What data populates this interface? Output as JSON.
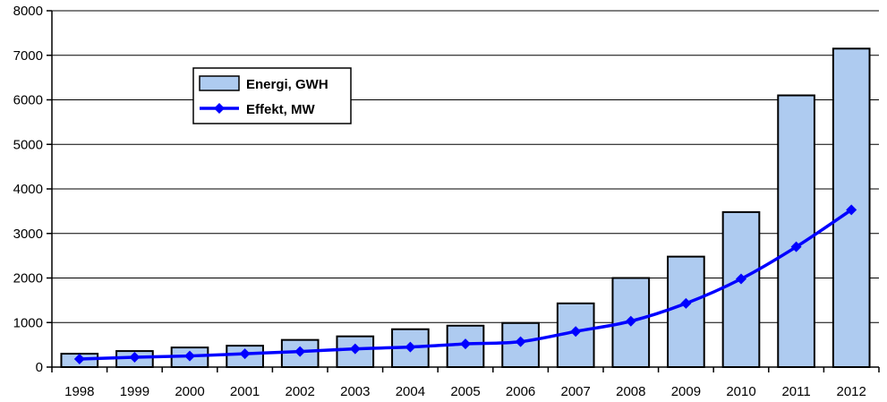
{
  "chart_data": {
    "type": "bar",
    "categories": [
      "1998",
      "1999",
      "2000",
      "2001",
      "2002",
      "2003",
      "2004",
      "2005",
      "2006",
      "2007",
      "2008",
      "2009",
      "2010",
      "2011",
      "2012"
    ],
    "series": [
      {
        "name": "Energi, GWH",
        "type": "bar",
        "color": "#aecbf0",
        "values": [
          300,
          360,
          440,
          480,
          610,
          690,
          850,
          930,
          990,
          1430,
          2000,
          2480,
          3480,
          6100,
          7150
        ]
      },
      {
        "name": "Effekt, MW",
        "type": "line",
        "color": "#0000ff",
        "marker": "diamond",
        "values": [
          180,
          220,
          250,
          300,
          350,
          410,
          450,
          520,
          570,
          800,
          1030,
          1430,
          1980,
          2700,
          3530
        ]
      }
    ],
    "y_ticks": [
      "0",
      "1000",
      "2000",
      "3000",
      "4000",
      "5000",
      "6000",
      "7000",
      "8000"
    ],
    "ylim": [
      0,
      8000
    ],
    "grid": true,
    "legend_position": "top-left"
  }
}
